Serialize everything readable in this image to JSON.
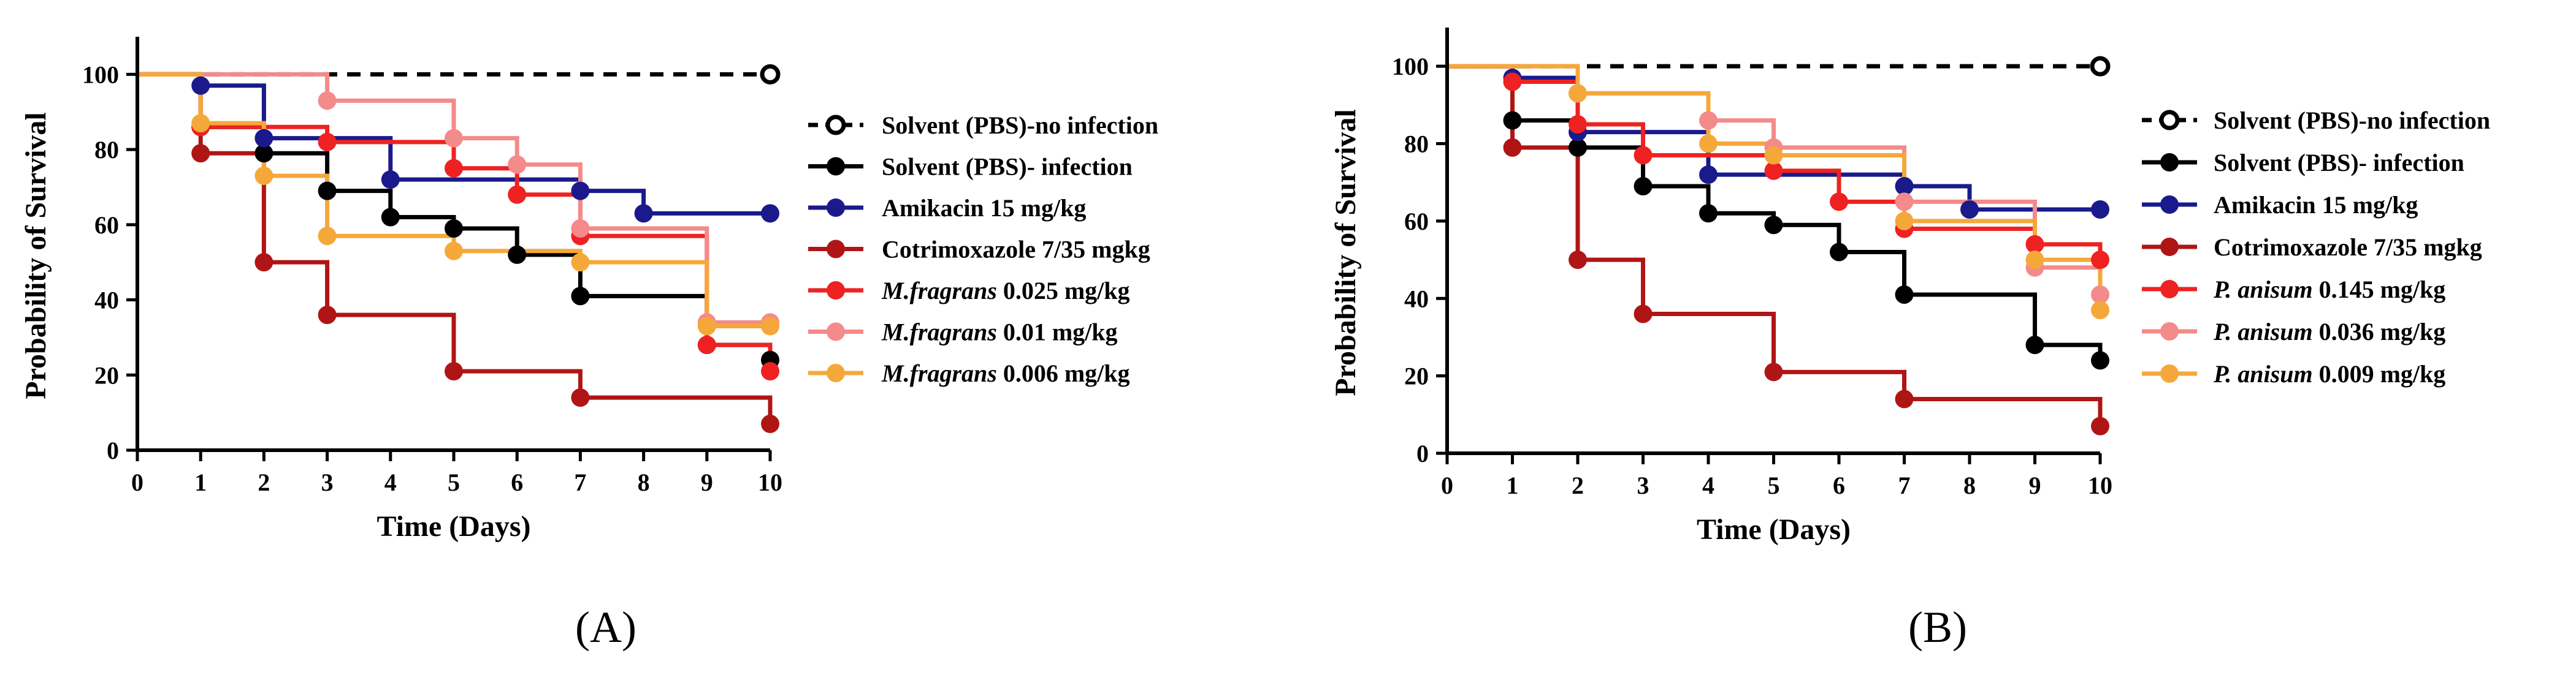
{
  "chart_data": [
    {
      "type": "line",
      "subtype": "kaplan-meier step",
      "panel_label": "(A)",
      "xlabel": "Time (Days)",
      "ylabel": "Probability of Survival",
      "xlim": [
        0,
        10
      ],
      "ylim": [
        0,
        110
      ],
      "xticks": [
        0,
        1,
        2,
        3,
        4,
        5,
        6,
        7,
        8,
        9,
        10
      ],
      "yticks": [
        0,
        20,
        40,
        60,
        80,
        100
      ],
      "legend_position": "right",
      "series": [
        {
          "name": "Solvent (PBS)-no infection",
          "label_main": "Solvent (PBS)-no infection",
          "label_rest": "",
          "color": "#000000",
          "dashed": true,
          "marker": "open",
          "steps": [
            [
              0,
              100
            ],
            [
              10,
              100
            ]
          ],
          "markers": [
            [
              10,
              100
            ]
          ]
        },
        {
          "name": "Solvent (PBS)- infection",
          "label_main": "Solvent (PBS)- infection",
          "label_rest": "",
          "color": "#000000",
          "dashed": false,
          "marker": "filled",
          "steps": [
            [
              0,
              100
            ],
            [
              1,
              86
            ],
            [
              2,
              79
            ],
            [
              3,
              69
            ],
            [
              4,
              62
            ],
            [
              5,
              59
            ],
            [
              6,
              52
            ],
            [
              7,
              41
            ],
            [
              9,
              28
            ],
            [
              10,
              24
            ]
          ],
          "markers": [
            [
              1,
              86
            ],
            [
              2,
              79
            ],
            [
              3,
              69
            ],
            [
              4,
              62
            ],
            [
              5,
              59
            ],
            [
              6,
              52
            ],
            [
              7,
              41
            ],
            [
              9,
              28
            ],
            [
              10,
              24
            ]
          ]
        },
        {
          "name": "Amikacin 15 mg/kg",
          "label_main": "Amikacin 15 mg/kg",
          "label_rest": "",
          "color": "#1a1a8c",
          "dashed": false,
          "marker": "filled",
          "steps": [
            [
              0,
              100
            ],
            [
              1,
              97
            ],
            [
              2,
              83
            ],
            [
              4,
              72
            ],
            [
              7,
              69
            ],
            [
              8,
              63
            ],
            [
              10,
              63
            ]
          ],
          "markers": [
            [
              1,
              97
            ],
            [
              2,
              83
            ],
            [
              4,
              72
            ],
            [
              7,
              69
            ],
            [
              8,
              63
            ],
            [
              10,
              63
            ]
          ]
        },
        {
          "name": "Cotrimoxazole 7/35 mgkg",
          "label_main": "Cotrimoxazole 7/35 mgkg",
          "label_rest": "",
          "color": "#b01515",
          "dashed": false,
          "marker": "filled",
          "steps": [
            [
              0,
              100
            ],
            [
              1,
              79
            ],
            [
              2,
              50
            ],
            [
              3,
              36
            ],
            [
              5,
              21
            ],
            [
              7,
              14
            ],
            [
              10,
              7
            ]
          ],
          "markers": [
            [
              1,
              79
            ],
            [
              2,
              50
            ],
            [
              3,
              36
            ],
            [
              5,
              21
            ],
            [
              7,
              14
            ],
            [
              10,
              7
            ]
          ]
        },
        {
          "name": "M.fragrans 0.025 mg/kg",
          "label_main": "M.fragrans",
          "label_rest": " 0.025 mg/kg",
          "color": "#ee2222",
          "dashed": false,
          "marker": "filled",
          "steps": [
            [
              0,
              100
            ],
            [
              1,
              86
            ],
            [
              3,
              82
            ],
            [
              5,
              75
            ],
            [
              6,
              68
            ],
            [
              7,
              57
            ],
            [
              9,
              28
            ],
            [
              10,
              21
            ]
          ],
          "markers": [
            [
              1,
              86
            ],
            [
              3,
              82
            ],
            [
              5,
              75
            ],
            [
              6,
              68
            ],
            [
              7,
              57
            ],
            [
              9,
              28
            ],
            [
              10,
              21
            ]
          ]
        },
        {
          "name": "M.fragrans 0.01 mg/kg",
          "label_main": "M.fragrans",
          "label_rest": " 0.01 mg/kg",
          "color": "#f58a8a",
          "dashed": false,
          "marker": "filled",
          "steps": [
            [
              0,
              100
            ],
            [
              3,
              93
            ],
            [
              5,
              83
            ],
            [
              6,
              76
            ],
            [
              7,
              59
            ],
            [
              9,
              34
            ],
            [
              10,
              34
            ]
          ],
          "markers": [
            [
              3,
              93
            ],
            [
              5,
              83
            ],
            [
              6,
              76
            ],
            [
              7,
              59
            ],
            [
              9,
              34
            ],
            [
              10,
              34
            ]
          ]
        },
        {
          "name": "M.fragrans 0.006 mg/kg",
          "label_main": "M.fragrans",
          "label_rest": " 0.006 mg/kg",
          "color": "#f5a83a",
          "dashed": false,
          "marker": "filled",
          "steps": [
            [
              0,
              100
            ],
            [
              1,
              87
            ],
            [
              2,
              73
            ],
            [
              3,
              57
            ],
            [
              5,
              53
            ],
            [
              7,
              50
            ],
            [
              9,
              33
            ],
            [
              10,
              33
            ]
          ],
          "markers": [
            [
              1,
              87
            ],
            [
              2,
              73
            ],
            [
              3,
              57
            ],
            [
              5,
              53
            ],
            [
              7,
              50
            ],
            [
              9,
              33
            ],
            [
              10,
              33
            ]
          ]
        }
      ]
    },
    {
      "type": "line",
      "subtype": "kaplan-meier step",
      "panel_label": "(B)",
      "xlabel": "Time (Days)",
      "ylabel": "Probability of Survival",
      "xlim": [
        0,
        10
      ],
      "ylim": [
        0,
        110
      ],
      "xticks": [
        0,
        1,
        2,
        3,
        4,
        5,
        6,
        7,
        8,
        9,
        10
      ],
      "yticks": [
        0,
        20,
        40,
        60,
        80,
        100
      ],
      "legend_position": "right",
      "series": [
        {
          "name": "Solvent (PBS)-no infection",
          "label_main": "Solvent (PBS)-no infection",
          "label_rest": "",
          "color": "#000000",
          "dashed": true,
          "marker": "open",
          "steps": [
            [
              0,
              100
            ],
            [
              10,
              100
            ]
          ],
          "markers": [
            [
              10,
              100
            ]
          ]
        },
        {
          "name": "Solvent (PBS)- infection",
          "label_main": "Solvent (PBS)- infection",
          "label_rest": "",
          "color": "#000000",
          "dashed": false,
          "marker": "filled",
          "steps": [
            [
              0,
              100
            ],
            [
              1,
              86
            ],
            [
              2,
              79
            ],
            [
              3,
              69
            ],
            [
              4,
              62
            ],
            [
              5,
              59
            ],
            [
              6,
              52
            ],
            [
              7,
              41
            ],
            [
              9,
              28
            ],
            [
              10,
              24
            ]
          ],
          "markers": [
            [
              1,
              86
            ],
            [
              2,
              79
            ],
            [
              3,
              69
            ],
            [
              4,
              62
            ],
            [
              5,
              59
            ],
            [
              6,
              52
            ],
            [
              7,
              41
            ],
            [
              9,
              28
            ],
            [
              10,
              24
            ]
          ]
        },
        {
          "name": "Amikacin 15 mg/kg",
          "label_main": " Amikacin 15 mg/kg",
          "label_rest": "",
          "color": "#1a1a8c",
          "dashed": false,
          "marker": "filled",
          "steps": [
            [
              0,
              100
            ],
            [
              1,
              97
            ],
            [
              2,
              83
            ],
            [
              4,
              72
            ],
            [
              7,
              69
            ],
            [
              8,
              63
            ],
            [
              10,
              63
            ]
          ],
          "markers": [
            [
              1,
              97
            ],
            [
              2,
              83
            ],
            [
              4,
              72
            ],
            [
              7,
              69
            ],
            [
              8,
              63
            ],
            [
              10,
              63
            ]
          ]
        },
        {
          "name": "Cotrimoxazole 7/35 mgkg",
          "label_main": "Cotrimoxazole 7/35 mgkg",
          "label_rest": "",
          "color": "#b01515",
          "dashed": false,
          "marker": "filled",
          "steps": [
            [
              0,
              100
            ],
            [
              1,
              79
            ],
            [
              2,
              50
            ],
            [
              3,
              36
            ],
            [
              5,
              21
            ],
            [
              7,
              14
            ],
            [
              10,
              7
            ]
          ],
          "markers": [
            [
              1,
              79
            ],
            [
              2,
              50
            ],
            [
              3,
              36
            ],
            [
              5,
              21
            ],
            [
              7,
              14
            ],
            [
              10,
              7
            ]
          ]
        },
        {
          "name": "P. anisum 0.145 mg/kg",
          "label_main": "P. anisum",
          "label_rest": " 0.145 mg/kg",
          "color": "#ee2222",
          "dashed": false,
          "marker": "filled",
          "steps": [
            [
              0,
              100
            ],
            [
              1,
              96
            ],
            [
              2,
              85
            ],
            [
              3,
              77
            ],
            [
              5,
              73
            ],
            [
              6,
              65
            ],
            [
              7,
              58
            ],
            [
              9,
              54
            ],
            [
              10,
              50
            ]
          ],
          "markers": [
            [
              1,
              96
            ],
            [
              2,
              85
            ],
            [
              3,
              77
            ],
            [
              5,
              73
            ],
            [
              6,
              65
            ],
            [
              7,
              58
            ],
            [
              9,
              54
            ],
            [
              10,
              50
            ]
          ]
        },
        {
          "name": "P. anisum 0.036 mg/kg",
          "label_main": "P. anisum",
          "label_rest": " 0.036 mg/kg",
          "color": "#f58a8a",
          "dashed": false,
          "marker": "filled",
          "steps": [
            [
              0,
              100
            ],
            [
              2,
              93
            ],
            [
              4,
              86
            ],
            [
              5,
              79
            ],
            [
              7,
              65
            ],
            [
              9,
              48
            ],
            [
              10,
              41
            ]
          ],
          "markers": [
            [
              2,
              93
            ],
            [
              4,
              86
            ],
            [
              5,
              79
            ],
            [
              7,
              65
            ],
            [
              9,
              48
            ],
            [
              10,
              41
            ]
          ]
        },
        {
          "name": "P. anisum 0.009 mg/kg",
          "label_main": "P. anisum",
          "label_rest": " 0.009 mg/kg",
          "color": "#f5a83a",
          "dashed": false,
          "marker": "filled",
          "steps": [
            [
              0,
              100
            ],
            [
              2,
              93
            ],
            [
              4,
              80
            ],
            [
              5,
              77
            ],
            [
              7,
              60
            ],
            [
              9,
              50
            ],
            [
              10,
              37
            ]
          ],
          "markers": [
            [
              2,
              93
            ],
            [
              4,
              80
            ],
            [
              5,
              77
            ],
            [
              7,
              60
            ],
            [
              9,
              50
            ],
            [
              10,
              37
            ]
          ]
        }
      ]
    }
  ]
}
